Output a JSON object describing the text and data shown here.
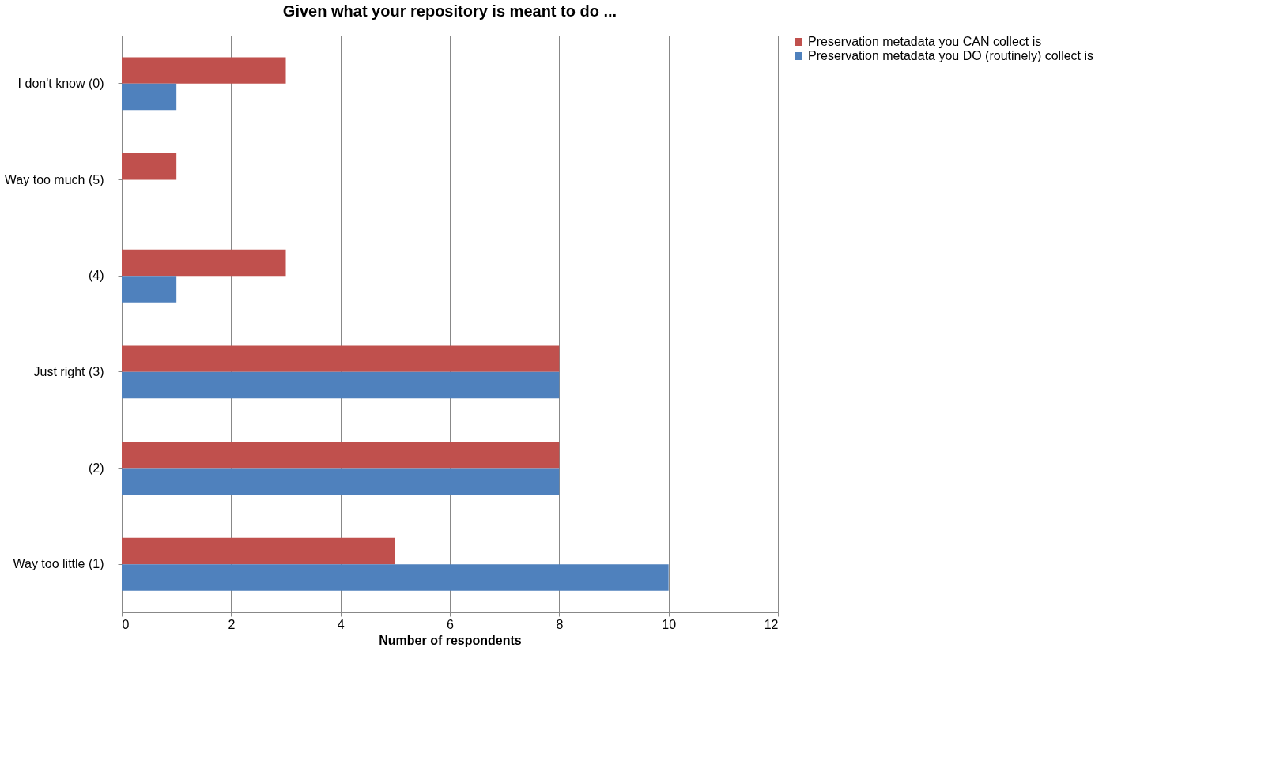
{
  "chart_data": {
    "type": "bar",
    "orientation": "horizontal",
    "title": "Given what your repository is meant to do ...",
    "xlabel": "Number of respondents",
    "categories": [
      "I don't know (0)",
      "Way too much (5)",
      "(4)",
      "Just right (3)",
      "(2)",
      "Way too little (1)"
    ],
    "series": [
      {
        "name": "Preservation metadata you CAN collect is",
        "color": "#c0504d",
        "values": [
          3,
          1,
          3,
          8,
          8,
          5
        ]
      },
      {
        "name": "Preservation metadata you DO (routinely) collect is",
        "color": "#4f81bd",
        "values": [
          1,
          0,
          1,
          8,
          8,
          10
        ]
      }
    ],
    "xlim": [
      0,
      12
    ],
    "xticks": [
      0,
      2,
      4,
      6,
      8,
      10,
      12
    ],
    "grid": "x",
    "legend": "right"
  }
}
